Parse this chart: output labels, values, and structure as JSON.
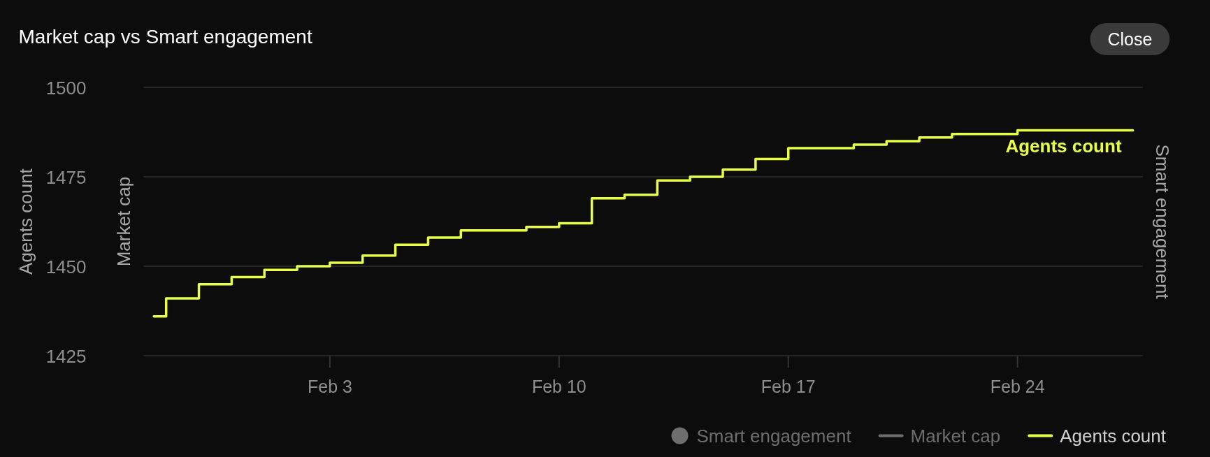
{
  "chart_data": {
    "type": "step",
    "title": "Market cap vs Smart engagement",
    "ylabel": "Agents count",
    "y2label": "Smart engagement",
    "y3label": "Market cap",
    "x": [
      "--01-28T15:00",
      "--01-29",
      "--01-30",
      "--01-31",
      "--02-01",
      "--02-02",
      "--02-03",
      "--02-04",
      "--02-05",
      "--02-06",
      "--02-07",
      "--02-08",
      "--02-09",
      "--02-10",
      "--02-11",
      "--02-12",
      "--02-13",
      "--02-14",
      "--02-15",
      "--02-16",
      "--02-17",
      "--02-18",
      "--02-19",
      "--02-20",
      "--02-21",
      "--02-22",
      "--02-23",
      "--02-24",
      "--02-25",
      "--02-26",
      "--02-27",
      "--02-27T12:30"
    ],
    "series": [
      {
        "name": "Smart engagement",
        "type": "scatter",
        "color": "#6e6e6e",
        "values": [
          null,
          null,
          null,
          null,
          null,
          null,
          null,
          null,
          null,
          null,
          null,
          null,
          null,
          null,
          null,
          null,
          null,
          null,
          null,
          null,
          null,
          null,
          null,
          null,
          null,
          null,
          null,
          null,
          null,
          null,
          null,
          null
        ]
      },
      {
        "name": "Market cap",
        "type": "line",
        "color": "#6e6e6e",
        "values": [
          null,
          null,
          null,
          null,
          null,
          null,
          null,
          null,
          null,
          null,
          null,
          null,
          null,
          null,
          null,
          null,
          null,
          null,
          null,
          null,
          null,
          null,
          null,
          null,
          null,
          null,
          null,
          null,
          null,
          null,
          null,
          null
        ]
      },
      {
        "name": "Agents count",
        "color": "#e8ff47",
        "values": [
          1436,
          1441,
          1445,
          1447,
          1449,
          1450,
          1451,
          1453,
          1456,
          1458,
          1460,
          1460,
          1461,
          1462,
          1469,
          1470,
          1474,
          1475,
          1477,
          1480,
          1483,
          1483,
          1484,
          1485,
          1486,
          1487,
          1487,
          1488,
          1488,
          1488,
          1488,
          1488
        ]
      }
    ],
    "xlim": [
      "--01-28T07:30",
      "--02-27T20:00"
    ],
    "xticks": [
      {
        "value": "--02-03",
        "label": "Feb 3"
      },
      {
        "value": "--02-10",
        "label": "Feb 10"
      },
      {
        "value": "--02-17",
        "label": "Feb 17"
      },
      {
        "value": "--02-24",
        "label": "Feb 24"
      }
    ],
    "ylim": [
      1425,
      1500
    ],
    "yticks": [
      1425,
      1450,
      1475,
      1500
    ],
    "grid": "y",
    "legend": "bottom right",
    "annotations": [
      "Close"
    ]
  }
}
